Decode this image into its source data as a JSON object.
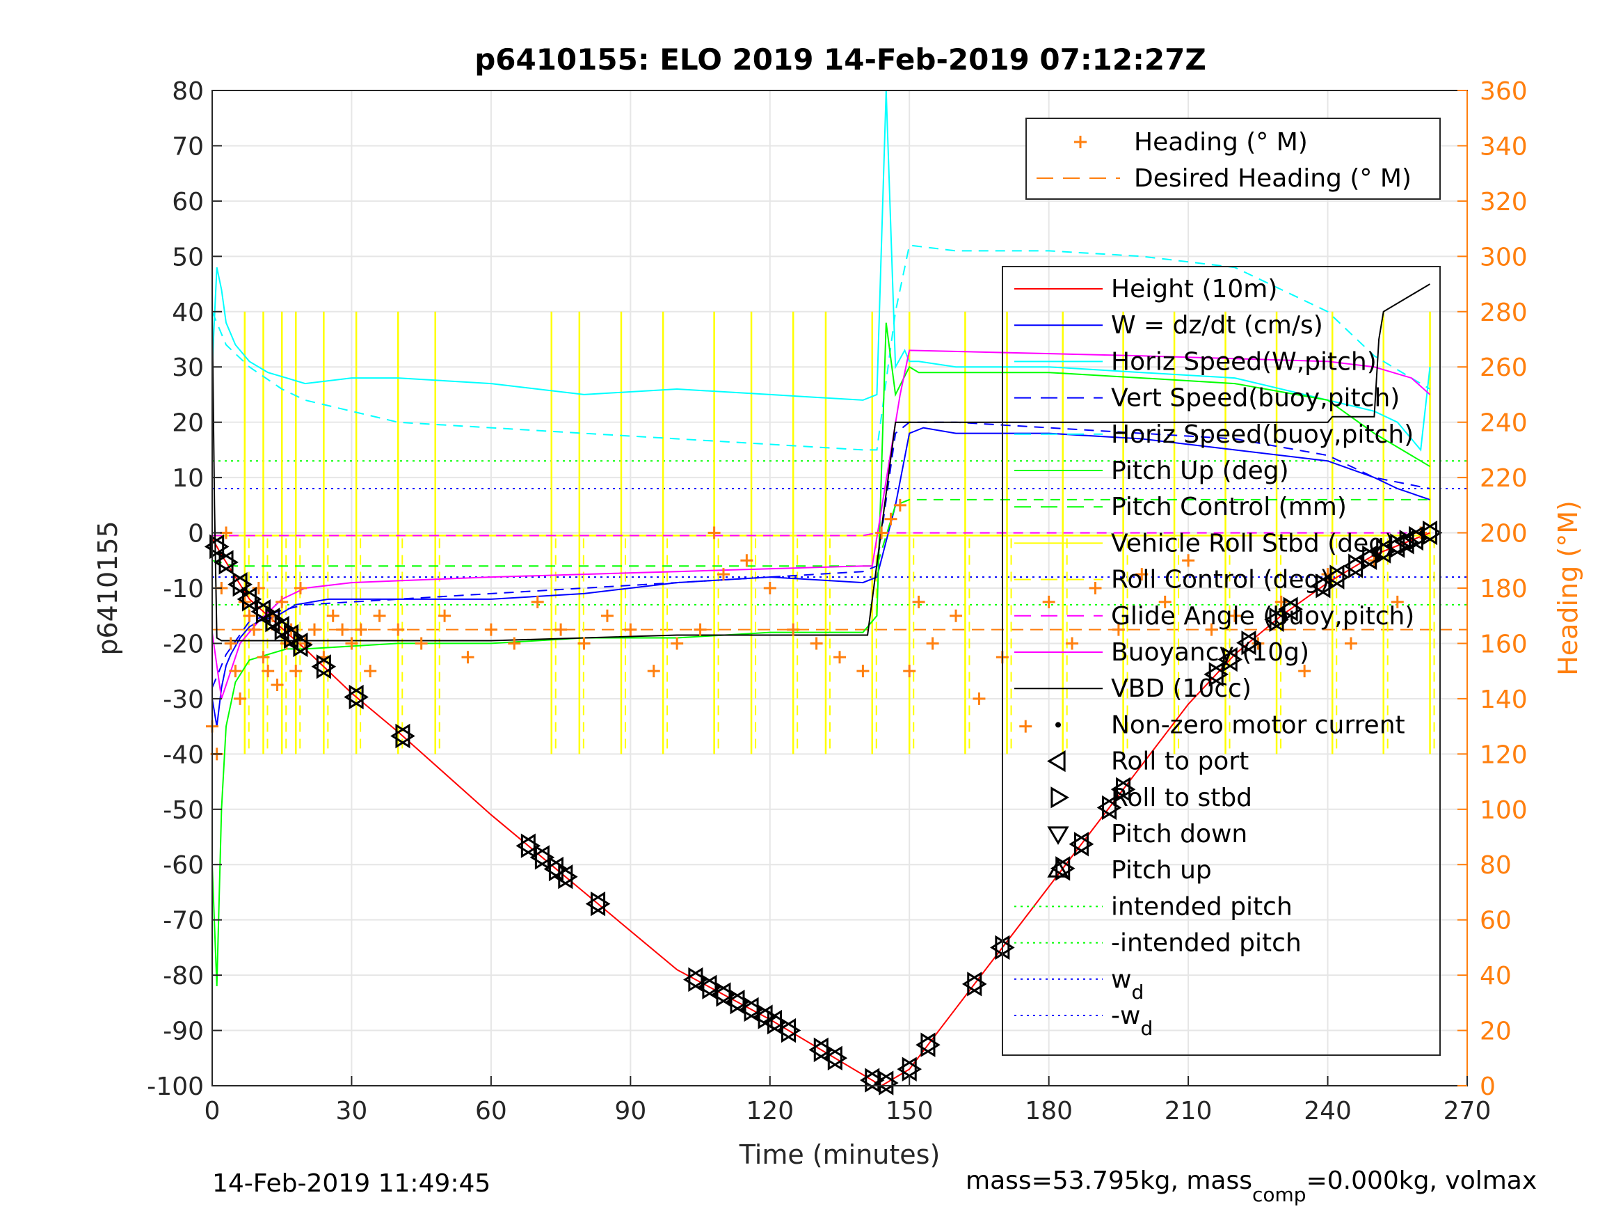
{
  "chart_data": {
    "type": "line",
    "title": "p6410155: ELO 2019 14-Feb-2019 07:12:27Z",
    "xlabel": "Time (minutes)",
    "ylabel_left": "p6410155",
    "ylabel_right": "Heading (°M)",
    "xlim": [
      0,
      270
    ],
    "ylim_left": [
      -100,
      80
    ],
    "ylim_right": [
      0,
      360
    ],
    "xticks": [
      "0",
      "30",
      "60",
      "90",
      "120",
      "150",
      "180",
      "210",
      "240",
      "270"
    ],
    "yticks_left": [
      "80",
      "70",
      "60",
      "50",
      "40",
      "30",
      "20",
      "10",
      "0",
      "-10",
      "-20",
      "-30",
      "-40",
      "-50",
      "-60",
      "-70",
      "-80",
      "-90",
      "-100"
    ],
    "yticks_right": [
      "360",
      "340",
      "320",
      "300",
      "280",
      "260",
      "240",
      "220",
      "200",
      "180",
      "160",
      "140",
      "120",
      "100",
      "80",
      "60",
      "40",
      "20",
      "0"
    ],
    "grid": true,
    "footer_left": "14-Feb-2019 11:49:45",
    "footer_right_pre": "mass=53.795kg, mass",
    "footer_right_sub": "comp",
    "footer_right_post": "=0.000kg, volmax",
    "legend_heading": [
      {
        "label": "Heading (° M)",
        "color": "#ff7f0e",
        "style": "plus"
      },
      {
        "label": "Desired Heading (° M)",
        "color": "#ff7f0e",
        "style": "dash"
      }
    ],
    "legend_main": [
      {
        "label": "Height (10m)",
        "color": "#ff0000",
        "style": "solid"
      },
      {
        "label": "W = dz/dt (cm/s)",
        "color": "#0000ff",
        "style": "solid"
      },
      {
        "label": "Horiz Speed(W,pitch)",
        "color": "#00ffff",
        "style": "solid"
      },
      {
        "label": "Vert Speed(buoy,pitch)",
        "color": "#0000ff",
        "style": "dash"
      },
      {
        "label": "Horiz Speed(buoy,pitch)",
        "color": "#00ffff",
        "style": "dash"
      },
      {
        "label": "Pitch Up (deg)",
        "color": "#00ff00",
        "style": "solid"
      },
      {
        "label": "Pitch Control (mm)",
        "color": "#00ff00",
        "style": "dash"
      },
      {
        "label": "Vehicle Roll Stbd (deg)",
        "color": "#ffff00",
        "style": "solid"
      },
      {
        "label": "Roll Control (deg)",
        "color": "#ffff00",
        "style": "dash"
      },
      {
        "label": "Glide Angle (buoy,pitch)",
        "color": "#ff00ff",
        "style": "dash"
      },
      {
        "label": "Buoyancy (10g)",
        "color": "#ff00ff",
        "style": "solid"
      },
      {
        "label": "VBD (10cc)",
        "color": "#000000",
        "style": "solid"
      },
      {
        "label": "Non-zero motor current",
        "color": "#000000",
        "style": "dot"
      },
      {
        "label": "Roll to port",
        "color": "#000000",
        "style": "tri-left"
      },
      {
        "label": "Roll to stbd",
        "color": "#000000",
        "style": "tri-right"
      },
      {
        "label": "Pitch down",
        "color": "#000000",
        "style": "tri-down"
      },
      {
        "label": "Pitch up",
        "color": "#000000",
        "style": "tri-up"
      },
      {
        "label": "intended pitch",
        "color": "#00ff00",
        "style": "dotted"
      },
      {
        "label": "-intended pitch",
        "color": "#00ff00",
        "style": "dotted"
      },
      {
        "label": "w",
        "sub": "d",
        "color": "#0000ff",
        "style": "dotted"
      },
      {
        "label": "-w",
        "sub": "d",
        "color": "#0000ff",
        "style": "dotted"
      }
    ],
    "series": [
      {
        "name": "Height (10m)",
        "axis": "left",
        "color": "#ff0000",
        "dash": "",
        "width": 2,
        "x": [
          0,
          2,
          5,
          8,
          12,
          16,
          20,
          30,
          40,
          60,
          80,
          100,
          120,
          140,
          144,
          150,
          160,
          170,
          180,
          190,
          200,
          210,
          220,
          230,
          240,
          250,
          262
        ],
        "y": [
          -1,
          -4,
          -8,
          -12,
          -15,
          -18,
          -21,
          -29,
          -36,
          -51,
          -65,
          -79,
          -88,
          -98,
          -100,
          -97,
          -86,
          -75,
          -64,
          -53,
          -42,
          -31,
          -22,
          -15,
          -9,
          -4,
          0
        ]
      },
      {
        "name": "W = dz/dt (cm/s)",
        "axis": "left",
        "color": "#0000ff",
        "dash": "",
        "width": 2,
        "x": [
          0,
          1,
          2,
          3,
          4,
          6,
          8,
          10,
          14,
          18,
          25,
          40,
          60,
          80,
          100,
          120,
          140,
          143,
          147,
          150,
          153,
          160,
          180,
          200,
          220,
          240,
          250,
          255,
          262
        ],
        "y": [
          -30,
          -35,
          -28,
          -24,
          -22,
          -19,
          -17,
          -16,
          -15,
          -13,
          -12,
          -12,
          -12,
          -11,
          -9,
          -8,
          -9,
          -8,
          5,
          18,
          19,
          18,
          18,
          17,
          15,
          13,
          10,
          8,
          6
        ]
      },
      {
        "name": "Horiz Speed(W,pitch)",
        "axis": "left",
        "color": "#00ffff",
        "dash": "",
        "width": 2,
        "x": [
          0,
          1,
          2,
          3,
          5,
          8,
          12,
          16,
          20,
          30,
          40,
          60,
          80,
          100,
          120,
          140,
          143,
          145,
          147,
          149,
          150,
          152,
          160,
          180,
          200,
          220,
          240,
          250,
          255,
          260,
          262
        ],
        "y": [
          30,
          48,
          44,
          38,
          34,
          31,
          29,
          28,
          27,
          28,
          28,
          27,
          25,
          26,
          25,
          24,
          25,
          80,
          30,
          33,
          31,
          31,
          30,
          30,
          29,
          28,
          24,
          22,
          20,
          15,
          30
        ]
      },
      {
        "name": "Vert Speed(buoy,pitch)",
        "axis": "left",
        "color": "#0000ff",
        "dash": "14,10",
        "width": 2,
        "x": [
          0,
          3,
          8,
          15,
          20,
          40,
          60,
          80,
          100,
          120,
          140,
          143,
          147,
          150,
          160,
          180,
          200,
          220,
          240,
          250,
          262
        ],
        "y": [
          -28,
          -22,
          -16,
          -14,
          -13,
          -12,
          -11,
          -10,
          -9,
          -8,
          -7,
          -6,
          18,
          20,
          20,
          19,
          18,
          17,
          14,
          10,
          8
        ]
      },
      {
        "name": "Horiz Speed(buoy,pitch)",
        "axis": "left",
        "color": "#00ffff",
        "dash": "14,10",
        "width": 2,
        "x": [
          0,
          3,
          8,
          15,
          20,
          30,
          40,
          60,
          80,
          100,
          120,
          140,
          143,
          147,
          150,
          160,
          180,
          200,
          220,
          240,
          250,
          262
        ],
        "y": [
          40,
          34,
          30,
          26,
          24,
          22,
          20,
          19,
          18,
          17,
          16,
          15,
          15,
          40,
          52,
          51,
          51,
          50,
          48,
          40,
          32,
          26
        ]
      },
      {
        "name": "Pitch Up (deg)",
        "axis": "left",
        "color": "#00ff00",
        "dash": "",
        "width": 2,
        "x": [
          0,
          1,
          2,
          3,
          5,
          8,
          12,
          16,
          20,
          40,
          60,
          80,
          100,
          120,
          140,
          143,
          145,
          147,
          150,
          152,
          160,
          180,
          200,
          220,
          240,
          250,
          262
        ],
        "y": [
          -60,
          -82,
          -50,
          -35,
          -27,
          -23,
          -22,
          -21,
          -21,
          -20,
          -20,
          -19,
          -19,
          -18,
          -18,
          -15,
          38,
          25,
          30,
          29,
          29,
          29,
          28,
          27,
          24,
          18,
          12
        ]
      },
      {
        "name": "Pitch Control (mm)",
        "axis": "left",
        "color": "#00ff00",
        "dash": "14,10",
        "width": 2,
        "x": [
          0,
          5,
          15,
          30,
          140,
          143,
          147,
          150,
          262
        ],
        "y": [
          -5,
          -6,
          -6,
          -6,
          -6,
          -6,
          5,
          6,
          6
        ]
      },
      {
        "name": "Glide Angle (buoy,pitch)",
        "axis": "left",
        "color": "#ff00ff",
        "dash": "14,10",
        "width": 2,
        "x": [
          0,
          140,
          143,
          147,
          262
        ],
        "y": [
          -0.5,
          -0.5,
          0,
          0,
          0
        ]
      },
      {
        "name": "Buoyancy (10g)",
        "axis": "left",
        "color": "#ff00ff",
        "dash": "",
        "width": 2,
        "x": [
          0,
          2,
          4,
          6,
          10,
          15,
          20,
          30,
          60,
          100,
          140,
          142,
          148,
          150,
          200,
          240,
          250,
          258,
          262
        ],
        "y": [
          -18,
          -30,
          -25,
          -20,
          -16,
          -12,
          -10,
          -9,
          -8,
          -7,
          -6,
          -6,
          25,
          33,
          32,
          31,
          30,
          28,
          25
        ]
      },
      {
        "name": "VBD (10cc)",
        "axis": "left",
        "color": "#000000",
        "dash": "",
        "width": 2,
        "x": [
          0,
          0.5,
          1,
          2,
          20,
          60,
          100,
          140,
          141,
          147,
          150,
          240,
          241,
          250,
          251,
          252,
          262
        ],
        "y": [
          40,
          5,
          -19,
          -19.5,
          -19.5,
          -19.5,
          -18.5,
          -18.5,
          -18.5,
          20,
          20,
          20,
          21,
          21,
          35,
          40,
          45
        ]
      }
    ],
    "static_lines": [
      {
        "name": "intended pitch",
        "axis": "left",
        "y": 13,
        "color": "#00ff00",
        "dash": "3,6"
      },
      {
        "name": "-intended pitch",
        "axis": "left",
        "y": -13,
        "color": "#00ff00",
        "dash": "3,6"
      },
      {
        "name": "wd",
        "axis": "left",
        "y": 8,
        "color": "#0000ff",
        "dash": "3,6"
      },
      {
        "name": "-wd",
        "axis": "left",
        "y": -8,
        "color": "#0000ff",
        "dash": "3,6"
      },
      {
        "name": "Desired Heading",
        "axis": "right",
        "y": 165,
        "color": "#ff7f0e",
        "dash": "18,10"
      }
    ],
    "roll_spikes_x": [
      7,
      11,
      15,
      18,
      24,
      31,
      40,
      48,
      73,
      79,
      88,
      97,
      108,
      116,
      125,
      132,
      142,
      150,
      162,
      171,
      183,
      196,
      207,
      218,
      229,
      241,
      252,
      262
    ],
    "heading_points": {
      "x": [
        0,
        1,
        2,
        3,
        4,
        5,
        6,
        7,
        8,
        9,
        10,
        11,
        12,
        13,
        14,
        15,
        16,
        17,
        18,
        19,
        20,
        22,
        24,
        26,
        28,
        30,
        32,
        34,
        36,
        40,
        45,
        50,
        55,
        60,
        65,
        70,
        75,
        80,
        85,
        90,
        95,
        100,
        105,
        108,
        110,
        115,
        120,
        125,
        130,
        135,
        140,
        144,
        146,
        148,
        150,
        152,
        155,
        160,
        165,
        170,
        175,
        180,
        185,
        190,
        195,
        200,
        205,
        210,
        215,
        220,
        225,
        230,
        235,
        240,
        245,
        250,
        255,
        260
      ],
      "y": [
        130,
        120,
        180,
        200,
        160,
        150,
        140,
        175,
        170,
        165,
        180,
        155,
        150,
        170,
        145,
        175,
        160,
        165,
        150,
        180,
        160,
        165,
        155,
        170,
        165,
        160,
        165,
        150,
        170,
        165,
        160,
        170,
        155,
        165,
        160,
        175,
        165,
        160,
        170,
        165,
        150,
        160,
        165,
        200,
        185,
        190,
        180,
        165,
        160,
        155,
        150,
        200,
        205,
        210,
        150,
        175,
        160,
        170,
        140,
        155,
        130,
        175,
        160,
        180,
        165,
        185,
        175,
        190,
        165,
        170,
        160,
        175,
        150,
        185,
        160,
        190,
        175,
        200
      ]
    }
  }
}
